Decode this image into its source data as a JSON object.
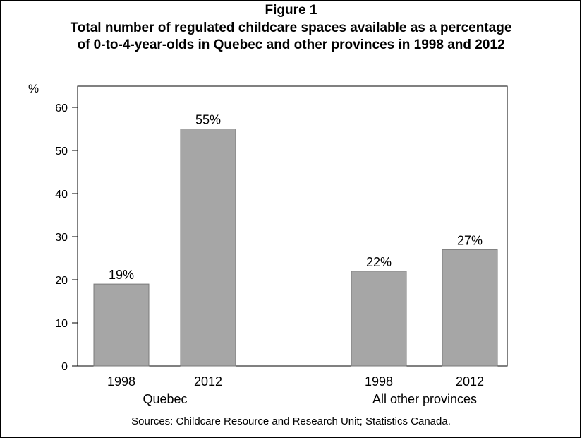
{
  "figure": {
    "label": "Figure 1",
    "title_line1": "Total number of regulated childcare spaces available as a percentage",
    "title_line2": "of 0-to-4-year-olds in Quebec and other provinces in 1998 and 2012",
    "source": "Sources: Childcare Resource and Research Unit; Statistics Canada."
  },
  "chart_data": {
    "type": "bar",
    "ylabel": "%",
    "ylim": [
      0,
      60
    ],
    "yticks": [
      0,
      10,
      20,
      30,
      40,
      50,
      60
    ],
    "groups": [
      {
        "name": "Quebec",
        "bars": [
          {
            "category": "1998",
            "value": 19,
            "label": "19%"
          },
          {
            "category": "2012",
            "value": 55,
            "label": "55%"
          }
        ]
      },
      {
        "name": "All other provinces",
        "bars": [
          {
            "category": "1998",
            "value": 22,
            "label": "22%"
          },
          {
            "category": "2012",
            "value": 27,
            "label": "27%"
          }
        ]
      }
    ],
    "colors": {
      "bar": "#a6a6a6",
      "bar_edge": "#7a7a7a",
      "axis": "#000000"
    },
    "grid": false,
    "legend": "none"
  }
}
